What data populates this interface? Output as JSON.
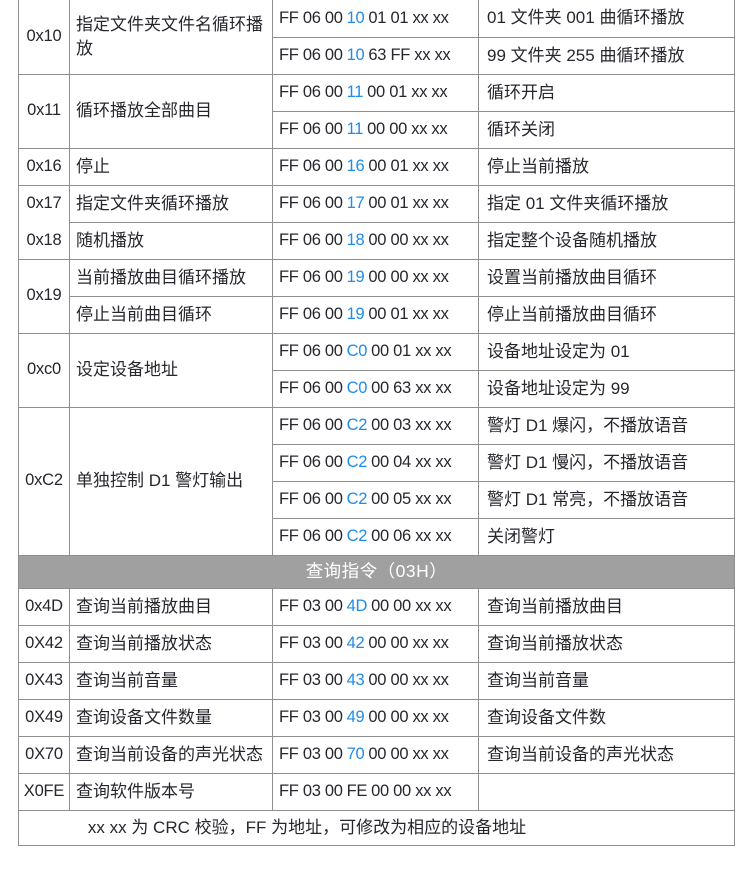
{
  "colors": {
    "accent_blue": "#1E8CE8",
    "text": "#26262F",
    "border": "#8E8E8E",
    "header_bg": "#A0A0A0",
    "header_text": "#FFFFFF",
    "background": "#FFFFFF"
  },
  "table": {
    "sections": [
      {
        "type": "groups",
        "name": "write-commands",
        "groups": [
          {
            "code": "0x10",
            "desc": "指定文件夹文件名循环播放",
            "rows": [
              {
                "cmd": {
                  "prefix": "FF 06 00",
                  "code": "10",
                  "suffix": "01 01 xx xx",
                  "highlight": true
                },
                "result": "01 文件夹 001 曲循环播放"
              },
              {
                "cmd": {
                  "prefix": "FF 06 00",
                  "code": "10",
                  "suffix": "63 FF xx xx",
                  "highlight": true
                },
                "result": "99 文件夹 255 曲循环播放"
              }
            ]
          },
          {
            "code": "0x11",
            "desc": "循环播放全部曲目",
            "rows": [
              {
                "cmd": {
                  "prefix": "FF 06 00",
                  "code": "11",
                  "suffix": "00 01 xx xx",
                  "highlight": true
                },
                "result": "循环开启"
              },
              {
                "cmd": {
                  "prefix": "FF 06 00",
                  "code": "11",
                  "suffix": "00 00 xx xx",
                  "highlight": true
                },
                "result": "循环关闭"
              }
            ]
          },
          {
            "code": "0x16",
            "desc": "停止",
            "rows": [
              {
                "cmd": {
                  "prefix": "FF 06 00",
                  "code": "16",
                  "suffix": "00 01 xx xx",
                  "highlight": true
                },
                "result": "停止当前播放"
              }
            ]
          },
          {
            "code": "0x17",
            "desc": "指定文件夹循环播放",
            "no_code_divider_below": true,
            "rows": [
              {
                "cmd": {
                  "prefix": "FF 06 00",
                  "code": "17",
                  "suffix": "00 01 xx xx",
                  "highlight": true
                },
                "result": "指定 01 文件夹循环播放"
              }
            ]
          },
          {
            "code": "0x18",
            "desc": "随机播放",
            "rows": [
              {
                "cmd": {
                  "prefix": "FF 06 00",
                  "code": "18",
                  "suffix": "00 00 xx xx",
                  "highlight": true
                },
                "result": "指定整个设备随机播放"
              }
            ]
          },
          {
            "code": "0x19",
            "rows": [
              {
                "desc": "当前播放曲目循环播放",
                "cmd": {
                  "prefix": "FF 06 00",
                  "code": "19",
                  "suffix": "00 00 xx xx",
                  "highlight": true
                },
                "result": "设置当前播放曲目循环"
              },
              {
                "desc": "停止当前曲目循环",
                "cmd": {
                  "prefix": "FF 06 00",
                  "code": "19",
                  "suffix": "00 01 xx xx",
                  "highlight": true
                },
                "result": "停止当前播放曲目循环"
              }
            ]
          },
          {
            "code": "0xc0",
            "desc": "设定设备地址",
            "rows": [
              {
                "cmd": {
                  "prefix": "FF 06 00",
                  "code": "C0",
                  "suffix": "00 01 xx xx",
                  "highlight": true
                },
                "result": "设备地址设定为 01"
              },
              {
                "cmd": {
                  "prefix": "FF 06 00",
                  "code": "C0",
                  "suffix": "00 63 xx xx",
                  "highlight": true
                },
                "result": "设备地址设定为 99"
              }
            ]
          },
          {
            "code": "0xC2",
            "desc": "单独控制 D1 警灯输出",
            "rows": [
              {
                "cmd": {
                  "prefix": "FF 06 00",
                  "code": "C2",
                  "suffix": "00 03 xx xx",
                  "highlight": true
                },
                "result": "警灯 D1 爆闪，不播放语音"
              },
              {
                "cmd": {
                  "prefix": "FF 06 00",
                  "code": "C2",
                  "suffix": "00 04 xx xx",
                  "highlight": true
                },
                "result": "警灯 D1 慢闪，不播放语音"
              },
              {
                "cmd": {
                  "prefix": "FF 06 00",
                  "code": "C2",
                  "suffix": "00 05 xx xx",
                  "highlight": true
                },
                "result": "警灯 D1 常亮，不播放语音"
              },
              {
                "cmd": {
                  "prefix": "FF 06 00",
                  "code": "C2",
                  "suffix": "00 06 xx xx",
                  "highlight": true
                },
                "result": "关闭警灯"
              }
            ]
          }
        ]
      },
      {
        "type": "header",
        "label": "查询指令（03H）"
      },
      {
        "type": "groups",
        "name": "query-commands",
        "groups": [
          {
            "code": "0x4D",
            "desc": "查询当前播放曲目",
            "rows": [
              {
                "cmd": {
                  "prefix": "FF 03 00",
                  "code": "4D",
                  "suffix": "00 00 xx xx",
                  "highlight": true
                },
                "result": "查询当前播放曲目"
              }
            ]
          },
          {
            "code": "0X42",
            "desc": "查询当前播放状态",
            "rows": [
              {
                "cmd": {
                  "prefix": "FF 03 00",
                  "code": "42",
                  "suffix": "00 00 xx xx",
                  "highlight": true
                },
                "result": "查询当前播放状态"
              }
            ]
          },
          {
            "code": "0X43",
            "desc": "查询当前音量",
            "rows": [
              {
                "cmd": {
                  "prefix": "FF 03 00",
                  "code": "43",
                  "suffix": "00 00 xx xx",
                  "highlight": true
                },
                "result": "查询当前音量"
              }
            ]
          },
          {
            "code": "0X49",
            "desc": "查询设备文件数量",
            "rows": [
              {
                "cmd": {
                  "prefix": "FF 03 00",
                  "code": "49",
                  "suffix": "00 00 xx xx",
                  "highlight": true
                },
                "result": "查询设备文件数"
              }
            ]
          },
          {
            "code": "0X70",
            "desc": "查询当前设备的声光状态",
            "rows": [
              {
                "cmd": {
                  "prefix": "FF 03 00",
                  "code": "70",
                  "suffix": "00 00 xx xx",
                  "highlight": true
                },
                "result": "查询当前设备的声光状态"
              }
            ]
          },
          {
            "code": "X0FE",
            "desc": "查询软件版本号",
            "rows": [
              {
                "cmd": {
                  "prefix": "FF 03 00",
                  "code": "FE",
                  "suffix": "00 00 xx xx",
                  "highlight": false
                },
                "result": ""
              }
            ]
          }
        ]
      },
      {
        "type": "note",
        "text": "xx xx 为 CRC 校验，FF 为地址，可修改为相应的设备地址"
      }
    ]
  }
}
